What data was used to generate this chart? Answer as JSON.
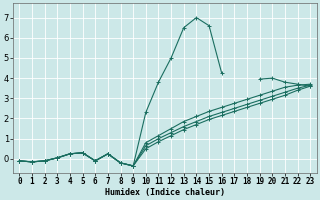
{
  "title": "",
  "xlabel": "Humidex (Indice chaleur)",
  "bg_color": "#cce8e8",
  "line_color": "#1a6e60",
  "grid_color": "#ffffff",
  "xlim": [
    -0.5,
    23.5
  ],
  "ylim": [
    -0.7,
    7.7
  ],
  "yticks": [
    0,
    1,
    2,
    3,
    4,
    5,
    6,
    7
  ],
  "xticks": [
    0,
    1,
    2,
    3,
    4,
    5,
    6,
    7,
    8,
    9,
    10,
    11,
    12,
    13,
    14,
    15,
    16,
    17,
    18,
    19,
    20,
    21,
    22,
    23
  ],
  "lines": [
    {
      "x": [
        0,
        1,
        2,
        3,
        4,
        5,
        6,
        7,
        8,
        9,
        10,
        11,
        12,
        13,
        14,
        15,
        16,
        17,
        18,
        19,
        20,
        21,
        22,
        23
      ],
      "y": [
        -0.1,
        -0.15,
        -0.1,
        0.05,
        0.25,
        0.3,
        -0.1,
        0.25,
        -0.2,
        -0.35,
        2.3,
        3.8,
        5.0,
        6.5,
        7.0,
        6.6,
        4.25,
        null,
        null,
        3.95,
        4.0,
        3.8,
        3.7,
        3.6
      ]
    },
    {
      "x": [
        0,
        1,
        2,
        3,
        4,
        5,
        6,
        7,
        8,
        9,
        10,
        11,
        12,
        13,
        14,
        15,
        16,
        17,
        18,
        19,
        20,
        21,
        22,
        23
      ],
      "y": [
        -0.1,
        -0.15,
        -0.1,
        0.05,
        0.25,
        0.3,
        -0.1,
        0.25,
        -0.2,
        -0.35,
        0.8,
        1.15,
        1.5,
        1.85,
        2.1,
        2.35,
        2.55,
        2.75,
        2.95,
        3.15,
        3.35,
        3.55,
        3.65,
        3.7
      ]
    },
    {
      "x": [
        0,
        1,
        2,
        3,
        4,
        5,
        6,
        7,
        8,
        9,
        10,
        11,
        12,
        13,
        14,
        15,
        16,
        17,
        18,
        19,
        20,
        21,
        22,
        23
      ],
      "y": [
        -0.1,
        -0.15,
        -0.1,
        0.05,
        0.25,
        0.3,
        -0.1,
        0.25,
        -0.2,
        -0.35,
        0.65,
        1.0,
        1.3,
        1.6,
        1.85,
        2.1,
        2.3,
        2.5,
        2.7,
        2.9,
        3.1,
        3.3,
        3.5,
        3.65
      ]
    },
    {
      "x": [
        0,
        1,
        2,
        3,
        4,
        5,
        6,
        7,
        8,
        9,
        10,
        11,
        12,
        13,
        14,
        15,
        16,
        17,
        18,
        19,
        20,
        21,
        22,
        23
      ],
      "y": [
        -0.1,
        -0.15,
        -0.1,
        0.05,
        0.25,
        0.3,
        -0.1,
        0.25,
        -0.2,
        -0.35,
        0.5,
        0.85,
        1.15,
        1.45,
        1.7,
        1.95,
        2.15,
        2.35,
        2.55,
        2.75,
        2.95,
        3.15,
        3.4,
        3.6
      ]
    }
  ],
  "marker": "+",
  "markersize": 3.5,
  "linewidth": 0.8,
  "xlabel_fontsize": 6.0,
  "tick_fontsize": 5.5
}
